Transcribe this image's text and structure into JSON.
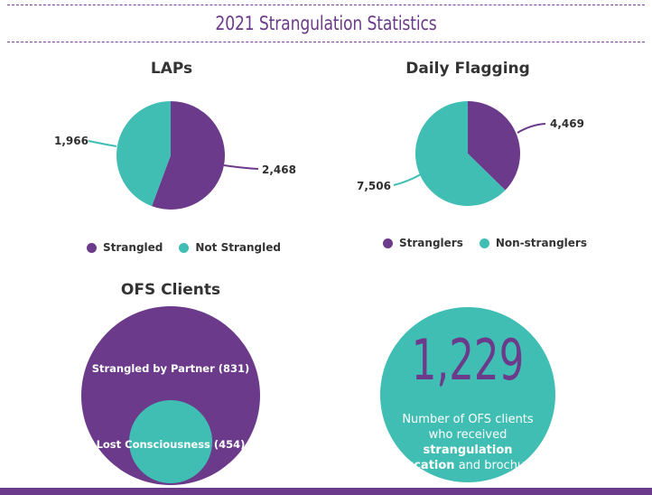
{
  "page_title": "2021 Strangulation Statistics",
  "colors": {
    "purple": "#6c3a8a",
    "teal": "#41beb4"
  },
  "chart_data": [
    {
      "type": "pie",
      "title": "LAPs",
      "slices": [
        {
          "label": "Strangled",
          "value": 2468,
          "display": "2,468",
          "color": "#6c3a8a"
        },
        {
          "label": "Not Strangled",
          "value": 1966,
          "display": "1,966",
          "color": "#41beb4"
        }
      ],
      "legend_position": "bottom"
    },
    {
      "type": "pie",
      "title": "Daily Flagging",
      "slices": [
        {
          "label": "Stranglers",
          "value": 4469,
          "display": "4,469",
          "color": "#6c3a8a"
        },
        {
          "label": "Non-stranglers",
          "value": 7506,
          "display": "7,506",
          "color": "#41beb4"
        }
      ],
      "legend_position": "bottom"
    },
    {
      "type": "venn",
      "title": "OFS Clients",
      "sets": [
        {
          "label": "Strangled by Partner (831)",
          "value": 831,
          "color": "#6c3a8a"
        },
        {
          "label": "Lost Consciousness (454)",
          "value": 454,
          "color": "#41beb4"
        }
      ]
    }
  ],
  "stat": {
    "number": "1,229",
    "caption_pre": "Number of OFS clients who received ",
    "caption_bold": "strangulation education",
    "caption_post": " and brochures."
  }
}
